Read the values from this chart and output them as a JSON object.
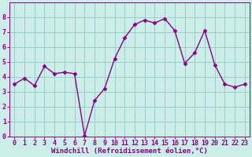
{
  "x": [
    0,
    1,
    2,
    3,
    4,
    5,
    6,
    7,
    8,
    9,
    10,
    11,
    12,
    13,
    14,
    15,
    16,
    17,
    18,
    19,
    20,
    21,
    22,
    23
  ],
  "y": [
    3.5,
    3.9,
    3.4,
    4.7,
    4.2,
    4.3,
    4.2,
    0.05,
    2.4,
    3.2,
    5.2,
    6.6,
    7.5,
    7.8,
    7.6,
    7.9,
    7.1,
    4.9,
    5.6,
    7.1,
    4.8,
    3.5,
    3.3,
    3.5
  ],
  "line_color": "#880088",
  "marker": "D",
  "marker_size": 2.5,
  "line_width": 1.0,
  "bg_color": "#cceee8",
  "grid_color": "#99cccc",
  "xlabel": "Windchill (Refroidissement éolien,°C)",
  "xlabel_color": "#880088",
  "xlabel_fontsize": 6.5,
  "tick_label_color": "#880088",
  "tick_fontsize": 6.0,
  "ylim": [
    0,
    9
  ],
  "xlim": [
    -0.5,
    23.5
  ],
  "yticks": [
    0,
    1,
    2,
    3,
    4,
    5,
    6,
    7,
    8
  ],
  "xticks": [
    0,
    1,
    2,
    3,
    4,
    5,
    6,
    7,
    8,
    9,
    10,
    11,
    12,
    13,
    14,
    15,
    16,
    17,
    18,
    19,
    20,
    21,
    22,
    23
  ]
}
